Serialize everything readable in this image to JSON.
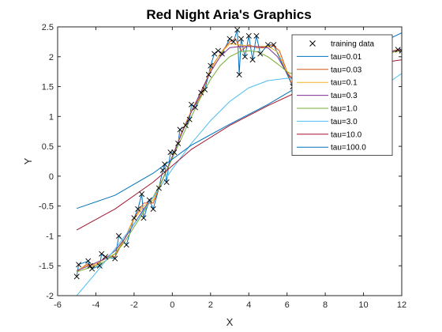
{
  "chart_data": {
    "type": "line",
    "title": "Red Night Aria's Graphics",
    "xlabel": "X",
    "ylabel": "Y",
    "xlim": [
      -6,
      12
    ],
    "ylim": [
      -2,
      2.5
    ],
    "xticks": [
      -6,
      -4,
      -2,
      0,
      2,
      4,
      6,
      8,
      10,
      12
    ],
    "yticks": [
      -2,
      -1.5,
      -1,
      -0.5,
      0,
      0.5,
      1,
      1.5,
      2,
      2.5
    ],
    "grid": false,
    "legend_position": "top-right",
    "training_data": {
      "name": "training data",
      "marker": "x",
      "color": "#000000",
      "points": [
        [
          -5.0,
          -1.68
        ],
        [
          -4.9,
          -1.48
        ],
        [
          -4.4,
          -1.42
        ],
        [
          -4.3,
          -1.5
        ],
        [
          -4.2,
          -1.55
        ],
        [
          -3.8,
          -1.5
        ],
        [
          -3.7,
          -1.3
        ],
        [
          -3.5,
          -1.35
        ],
        [
          -3.0,
          -1.38
        ],
        [
          -2.8,
          -1.0
        ],
        [
          -2.4,
          -1.15
        ],
        [
          -2.0,
          -0.7
        ],
        [
          -1.8,
          -0.55
        ],
        [
          -1.6,
          -0.3
        ],
        [
          -1.5,
          -0.7
        ],
        [
          -1.2,
          -0.4
        ],
        [
          -1.0,
          -0.55
        ],
        [
          -0.7,
          -0.2
        ],
        [
          -0.5,
          0.1
        ],
        [
          -0.4,
          0.2
        ],
        [
          -0.3,
          -0.1
        ],
        [
          -0.1,
          0.4
        ],
        [
          0.1,
          0.4
        ],
        [
          0.3,
          0.55
        ],
        [
          0.4,
          0.78
        ],
        [
          0.7,
          0.85
        ],
        [
          0.9,
          0.95
        ],
        [
          1.0,
          1.2
        ],
        [
          1.2,
          1.15
        ],
        [
          1.5,
          1.4
        ],
        [
          1.7,
          1.45
        ],
        [
          1.9,
          1.7
        ],
        [
          2.0,
          1.85
        ],
        [
          2.2,
          2.05
        ],
        [
          2.4,
          2.1
        ],
        [
          2.6,
          2.05
        ],
        [
          3.0,
          2.3
        ],
        [
          3.2,
          2.25
        ],
        [
          3.4,
          2.45
        ],
        [
          3.5,
          1.7
        ],
        [
          3.6,
          2.3
        ],
        [
          3.8,
          2.0
        ],
        [
          4.0,
          2.35
        ],
        [
          4.2,
          1.95
        ],
        [
          4.4,
          2.35
        ],
        [
          4.6,
          2.05
        ],
        [
          5.0,
          2.2
        ],
        [
          5.3,
          2.2
        ],
        [
          6.3,
          1.5
        ],
        [
          11.8,
          2.12
        ],
        [
          12.0,
          2.1
        ]
      ]
    },
    "series": [
      {
        "name": "tau=0.01",
        "color": "#0072BD",
        "x": [
          -5,
          -4.9,
          -4.4,
          -4.3,
          -4.2,
          -3.8,
          -3.7,
          -3.5,
          -3.0,
          -2.8,
          -2.4,
          -2.0,
          -1.8,
          -1.6,
          -1.5,
          -1.2,
          -1.0,
          -0.7,
          -0.5,
          -0.4,
          -0.3,
          -0.1,
          0.1,
          0.3,
          0.4,
          0.7,
          0.9,
          1.0,
          1.2,
          1.5,
          1.7,
          1.9,
          2.0,
          2.2,
          2.4,
          2.6,
          3.0,
          3.2,
          3.4,
          3.5,
          3.6,
          3.8,
          4.0,
          4.2,
          4.4,
          4.6,
          5.0,
          5.3,
          6.3,
          11.8,
          12.0
        ],
        "y": [
          -1.68,
          -1.48,
          -1.42,
          -1.5,
          -1.55,
          -1.5,
          -1.3,
          -1.35,
          -1.38,
          -1.0,
          -1.15,
          -0.7,
          -0.55,
          -0.3,
          -0.7,
          -0.4,
          -0.55,
          -0.2,
          0.1,
          0.2,
          -0.1,
          0.4,
          0.4,
          0.55,
          0.78,
          0.85,
          0.95,
          1.2,
          1.15,
          1.4,
          1.45,
          1.7,
          1.85,
          2.05,
          2.1,
          2.05,
          2.3,
          2.25,
          2.45,
          1.7,
          2.3,
          2.0,
          2.35,
          1.95,
          2.35,
          2.05,
          2.2,
          2.2,
          1.5,
          2.12,
          2.1
        ]
      },
      {
        "name": "tau=0.03",
        "color": "#D95319",
        "x": [
          -5,
          -4.5,
          -4,
          -3.5,
          -3,
          -2.5,
          -2,
          -1.5,
          -1,
          -0.5,
          0,
          0.5,
          1,
          1.5,
          2,
          2.5,
          3,
          3.3,
          3.6,
          4,
          4.4,
          4.8,
          5.2,
          5.6,
          6.0,
          6.3,
          7,
          8,
          9,
          10,
          11,
          11.8,
          12
        ],
        "y": [
          -1.6,
          -1.48,
          -1.5,
          -1.35,
          -1.35,
          -1.05,
          -0.7,
          -0.45,
          -0.45,
          -0.05,
          0.3,
          0.75,
          1.1,
          1.35,
          1.8,
          2.05,
          2.25,
          2.3,
          2.1,
          2.2,
          2.15,
          2.15,
          2.2,
          2.1,
          1.75,
          1.5,
          1.55,
          1.7,
          1.85,
          1.95,
          2.05,
          2.12,
          2.1
        ]
      },
      {
        "name": "tau=0.1",
        "color": "#EDB120",
        "x": [
          -5,
          -4.5,
          -4,
          -3.5,
          -3,
          -2.5,
          -2,
          -1.5,
          -1,
          -0.5,
          0,
          0.5,
          1,
          1.5,
          2,
          2.5,
          3,
          3.5,
          4,
          4.5,
          5,
          5.5,
          6,
          6.5,
          7,
          8,
          9,
          10,
          11,
          12
        ],
        "y": [
          -1.58,
          -1.5,
          -1.47,
          -1.38,
          -1.3,
          -1.05,
          -0.72,
          -0.5,
          -0.4,
          -0.05,
          0.32,
          0.75,
          1.1,
          1.4,
          1.78,
          2.05,
          2.22,
          2.2,
          2.18,
          2.17,
          2.18,
          2.08,
          1.75,
          1.55,
          1.55,
          1.7,
          1.85,
          1.95,
          2.05,
          2.1
        ]
      },
      {
        "name": "tau=0.3",
        "color": "#7E2F8E",
        "x": [
          -5,
          -4.5,
          -4,
          -3.5,
          -3,
          -2.5,
          -2,
          -1.5,
          -1,
          -0.5,
          0,
          0.5,
          1,
          1.5,
          2,
          2.5,
          3,
          3.5,
          4,
          4.5,
          5,
          5.5,
          6,
          6.5,
          7,
          8,
          9,
          10,
          11,
          12
        ],
        "y": [
          -1.58,
          -1.52,
          -1.45,
          -1.38,
          -1.25,
          -1.05,
          -0.8,
          -0.55,
          -0.35,
          -0.05,
          0.33,
          0.72,
          1.08,
          1.42,
          1.75,
          2.0,
          2.15,
          2.17,
          2.17,
          2.17,
          2.15,
          2.0,
          1.72,
          1.55,
          1.56,
          1.72,
          1.87,
          1.98,
          2.06,
          2.12
        ]
      },
      {
        "name": "tau=1.0",
        "color": "#77AC30",
        "x": [
          -5,
          -4.5,
          -4,
          -3.5,
          -3,
          -2.5,
          -2,
          -1.5,
          -1,
          -0.5,
          0,
          0.5,
          1,
          1.5,
          2,
          2.5,
          3,
          3.5,
          4,
          4.5,
          5,
          5.5,
          6,
          6.5,
          7,
          8,
          9,
          10,
          11,
          12
        ],
        "y": [
          -1.6,
          -1.55,
          -1.5,
          -1.42,
          -1.3,
          -1.1,
          -0.85,
          -0.6,
          -0.35,
          -0.05,
          0.3,
          0.65,
          1.0,
          1.33,
          1.62,
          1.85,
          2.0,
          2.08,
          2.1,
          2.08,
          2.0,
          1.88,
          1.75,
          1.68,
          1.68,
          1.78,
          1.9,
          2.0,
          2.05,
          2.1
        ]
      },
      {
        "name": "tau=3.0",
        "color": "#4DBEEE",
        "x": [
          -5,
          -4,
          -3,
          -2,
          -1,
          0,
          1,
          2,
          3,
          4,
          5,
          6,
          6.5,
          7,
          8,
          9,
          10,
          11,
          12
        ],
        "y": [
          -2.0,
          -1.62,
          -1.22,
          -0.8,
          -0.35,
          0.12,
          0.55,
          0.93,
          1.25,
          1.48,
          1.6,
          1.64,
          1.63,
          1.6,
          1.52,
          1.45,
          1.43,
          1.5,
          1.72
        ]
      },
      {
        "name": "tau=10.0",
        "color": "#A2142F",
        "x": [
          -5,
          -3,
          -1,
          1,
          3,
          5,
          7,
          9,
          11,
          12
        ],
        "y": [
          -0.9,
          -0.55,
          -0.1,
          0.45,
          0.85,
          1.18,
          1.48,
          1.73,
          1.9,
          1.95
        ]
      },
      {
        "name": "tau=100.0",
        "color": "#0072BD",
        "x": [
          -5,
          -3,
          -1,
          1,
          3,
          5,
          7,
          9,
          11,
          12
        ],
        "y": [
          -0.54,
          -0.32,
          0.05,
          0.52,
          0.87,
          1.2,
          1.58,
          1.92,
          2.25,
          2.4
        ]
      }
    ]
  }
}
